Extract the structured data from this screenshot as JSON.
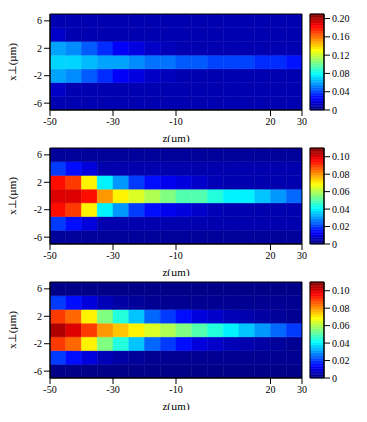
{
  "chart_data": [
    {
      "type": "heatmap",
      "x_label": "z(µm)",
      "y_label": "x⊥(µm)",
      "xlim": [
        -50,
        30
      ],
      "xticks": [
        -50,
        -30,
        -10,
        20,
        30
      ],
      "ylim": [
        -7,
        7
      ],
      "yticks": [
        -6,
        -2,
        2,
        6
      ],
      "z_edges": [
        -50,
        -45,
        -40,
        -35,
        -30,
        -25,
        -20,
        -15,
        -10,
        -5,
        0,
        5,
        10,
        15,
        20,
        25,
        30
      ],
      "x_edges": [
        -7,
        -5,
        -3,
        -1,
        1,
        3,
        5,
        7
      ],
      "cells": [
        [
          0.01,
          0.01,
          0.01,
          0.01,
          0.01,
          0.01,
          0.01,
          0.01,
          0.01,
          0.01,
          0.01,
          0.01,
          0.01,
          0.01,
          0.01,
          0.01
        ],
        [
          0.015,
          0.01,
          0.01,
          0.01,
          0.01,
          0.01,
          0.01,
          0.01,
          0.01,
          0.01,
          0.01,
          0.01,
          0.01,
          0.01,
          0.01,
          0.01
        ],
        [
          0.06,
          0.055,
          0.045,
          0.035,
          0.025,
          0.02,
          0.015,
          0.012,
          0.01,
          0.01,
          0.01,
          0.01,
          0.01,
          0.01,
          0.01,
          0.01
        ],
        [
          0.07,
          0.07,
          0.065,
          0.06,
          0.06,
          0.055,
          0.05,
          0.05,
          0.045,
          0.045,
          0.04,
          0.04,
          0.04,
          0.035,
          0.035,
          0.03
        ],
        [
          0.06,
          0.055,
          0.045,
          0.035,
          0.025,
          0.02,
          0.015,
          0.012,
          0.01,
          0.01,
          0.01,
          0.01,
          0.01,
          0.01,
          0.01,
          0.01
        ],
        [
          0.015,
          0.01,
          0.01,
          0.01,
          0.01,
          0.01,
          0.01,
          0.01,
          0.01,
          0.01,
          0.01,
          0.01,
          0.01,
          0.01,
          0.01,
          0.01
        ],
        [
          0.01,
          0.01,
          0.01,
          0.01,
          0.01,
          0.01,
          0.01,
          0.01,
          0.01,
          0.01,
          0.01,
          0.01,
          0.01,
          0.01,
          0.01,
          0.01
        ]
      ],
      "colorbar_range": [
        0,
        0.21
      ],
      "colorbar_ticks": [
        0,
        0.04,
        0.08,
        0.12,
        0.16,
        {
          "value": 0.2,
          "label": "0.20"
        }
      ]
    },
    {
      "type": "heatmap",
      "x_label": "z(µm)",
      "y_label": "x⊥(µm)",
      "xlim": [
        -50,
        30
      ],
      "xticks": [
        -50,
        -30,
        -10,
        20,
        30
      ],
      "ylim": [
        -7,
        7
      ],
      "yticks": [
        -6,
        -2,
        2,
        6
      ],
      "z_edges": [
        -50,
        -45,
        -40,
        -35,
        -30,
        -25,
        -20,
        -15,
        -10,
        -5,
        0,
        5,
        10,
        15,
        20,
        25,
        30
      ],
      "x_edges": [
        -7,
        -5,
        -3,
        -1,
        1,
        3,
        5,
        7
      ],
      "cells": [
        [
          0.003,
          0.003,
          0.003,
          0.003,
          0.003,
          0.003,
          0.003,
          0.003,
          0.003,
          0.003,
          0.003,
          0.003,
          0.003,
          0.003,
          0.003,
          0.003
        ],
        [
          0.02,
          0.015,
          0.01,
          0.005,
          0.005,
          0.005,
          0.005,
          0.005,
          0.005,
          0.005,
          0.005,
          0.005,
          0.005,
          0.005,
          0.005,
          0.005
        ],
        [
          0.095,
          0.09,
          0.07,
          0.04,
          0.03,
          0.02,
          0.015,
          0.012,
          0.01,
          0.008,
          0.006,
          0.005,
          0.005,
          0.005,
          0.005,
          0.005
        ],
        [
          0.1,
          0.1,
          0.095,
          0.08,
          0.07,
          0.065,
          0.06,
          0.055,
          0.05,
          0.05,
          0.045,
          0.04,
          0.04,
          0.035,
          0.03,
          0.025
        ],
        [
          0.095,
          0.09,
          0.07,
          0.04,
          0.03,
          0.02,
          0.015,
          0.012,
          0.01,
          0.008,
          0.006,
          0.005,
          0.005,
          0.005,
          0.005,
          0.005
        ],
        [
          0.02,
          0.015,
          0.01,
          0.005,
          0.005,
          0.005,
          0.005,
          0.005,
          0.005,
          0.005,
          0.005,
          0.005,
          0.005,
          0.005,
          0.005,
          0.005
        ],
        [
          0.003,
          0.003,
          0.003,
          0.003,
          0.003,
          0.003,
          0.003,
          0.003,
          0.003,
          0.003,
          0.003,
          0.003,
          0.003,
          0.003,
          0.003,
          0.003
        ]
      ],
      "colorbar_range": [
        0,
        0.11
      ],
      "colorbar_ticks": [
        0,
        0.02,
        0.04,
        0.06,
        0.08,
        {
          "value": 0.1,
          "label": "0.10"
        }
      ]
    },
    {
      "type": "heatmap",
      "x_label": "z(µm)",
      "y_label": "x⊥(µm)",
      "xlim": [
        -50,
        30
      ],
      "xticks": [
        -50,
        -30,
        -10,
        20,
        30
      ],
      "ylim": [
        -7,
        7
      ],
      "yticks": [
        -6,
        -2,
        2,
        6
      ],
      "z_edges": [
        -50,
        -45,
        -40,
        -35,
        -30,
        -25,
        -20,
        -15,
        -10,
        -5,
        0,
        5,
        10,
        15,
        20,
        25,
        30
      ],
      "x_edges": [
        -7,
        -5,
        -3,
        -1,
        1,
        3,
        5,
        7
      ],
      "cells": [
        [
          0.001,
          0.001,
          0.001,
          0.001,
          0.001,
          0.001,
          0.001,
          0.001,
          0.001,
          0.001,
          0.001,
          0.001,
          0.001,
          0.001,
          0.001,
          0.001
        ],
        [
          0.02,
          0.015,
          0.01,
          0.006,
          0.004,
          0.003,
          0.002,
          0.002,
          0.002,
          0.002,
          0.002,
          0.002,
          0.002,
          0.002,
          0.002,
          0.002
        ],
        [
          0.09,
          0.085,
          0.07,
          0.055,
          0.045,
          0.035,
          0.025,
          0.02,
          0.015,
          0.01,
          0.008,
          0.006,
          0.005,
          0.004,
          0.003,
          0.002
        ],
        [
          0.105,
          0.1,
          0.09,
          0.08,
          0.075,
          0.07,
          0.065,
          0.06,
          0.055,
          0.05,
          0.045,
          0.04,
          0.035,
          0.03,
          0.025,
          0.02
        ],
        [
          0.09,
          0.085,
          0.07,
          0.055,
          0.045,
          0.035,
          0.025,
          0.02,
          0.015,
          0.01,
          0.008,
          0.006,
          0.005,
          0.004,
          0.003,
          0.002
        ],
        [
          0.02,
          0.015,
          0.01,
          0.006,
          0.004,
          0.003,
          0.002,
          0.002,
          0.002,
          0.002,
          0.002,
          0.002,
          0.002,
          0.002,
          0.002,
          0.002
        ],
        [
          0.001,
          0.001,
          0.001,
          0.001,
          0.001,
          0.001,
          0.001,
          0.001,
          0.001,
          0.001,
          0.001,
          0.001,
          0.001,
          0.001,
          0.001,
          0.001
        ]
      ],
      "colorbar_range": [
        0,
        0.11
      ],
      "colorbar_ticks": [
        0,
        0.02,
        0.04,
        0.06,
        0.08,
        {
          "value": 0.1,
          "label": "0.10"
        }
      ]
    }
  ]
}
